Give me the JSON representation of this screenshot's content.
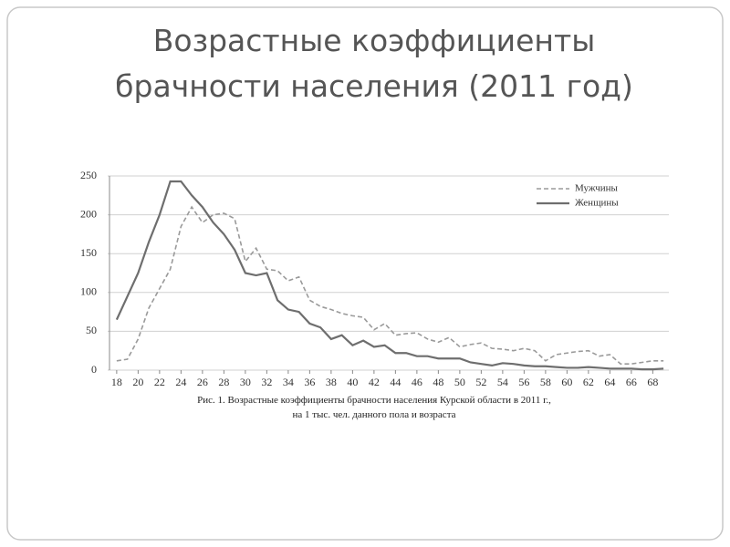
{
  "chart_data": {
    "type": "line",
    "title": [
      "Возрастные коэффициенты",
      "брачности населения (2011 год)"
    ],
    "caption": [
      "Рис. 1. Возрастные коэффициенты брачности населения Курской области в 2011 г.,",
      "на 1 тыс. чел. данного пола и возраста"
    ],
    "x": [
      18,
      19,
      20,
      21,
      22,
      23,
      24,
      25,
      26,
      27,
      28,
      29,
      30,
      31,
      32,
      33,
      34,
      35,
      36,
      37,
      38,
      39,
      40,
      41,
      42,
      43,
      44,
      45,
      46,
      47,
      48,
      49,
      50,
      51,
      52,
      53,
      54,
      55,
      56,
      57,
      58,
      59,
      60,
      61,
      62,
      63,
      64,
      65,
      66,
      67,
      68,
      69
    ],
    "series": [
      {
        "name": "Мужчины",
        "color": "#9a9a9a",
        "dash": true,
        "values": [
          12,
          14,
          40,
          80,
          105,
          130,
          185,
          210,
          190,
          200,
          202,
          195,
          140,
          157,
          130,
          128,
          115,
          120,
          90,
          82,
          78,
          73,
          70,
          68,
          52,
          60,
          45,
          47,
          48,
          40,
          36,
          42,
          30,
          33,
          35,
          28,
          27,
          25,
          28,
          25,
          12,
          20,
          22,
          24,
          25,
          18,
          20,
          8,
          8,
          10,
          12,
          12
        ]
      },
      {
        "name": "Женщины",
        "color": "#6e6e6e",
        "dash": false,
        "values": [
          65,
          95,
          125,
          165,
          200,
          243,
          243,
          225,
          210,
          190,
          175,
          155,
          125,
          122,
          125,
          90,
          78,
          75,
          60,
          55,
          40,
          45,
          32,
          38,
          30,
          32,
          22,
          22,
          18,
          18,
          15,
          15,
          15,
          10,
          8,
          6,
          9,
          8,
          6,
          5,
          5,
          4,
          3,
          3,
          4,
          3,
          2,
          2,
          2,
          1,
          1,
          2
        ]
      }
    ],
    "xlim": [
      17.5,
      69.5
    ],
    "xticks": [
      18,
      20,
      22,
      24,
      26,
      28,
      30,
      32,
      34,
      36,
      38,
      40,
      42,
      44,
      46,
      48,
      50,
      52,
      54,
      56,
      58,
      60,
      62,
      64,
      66,
      68
    ],
    "ylim": [
      0,
      250
    ],
    "yticks": [
      0,
      50,
      100,
      150,
      200,
      250
    ],
    "grid": true,
    "legend": "upper right"
  }
}
